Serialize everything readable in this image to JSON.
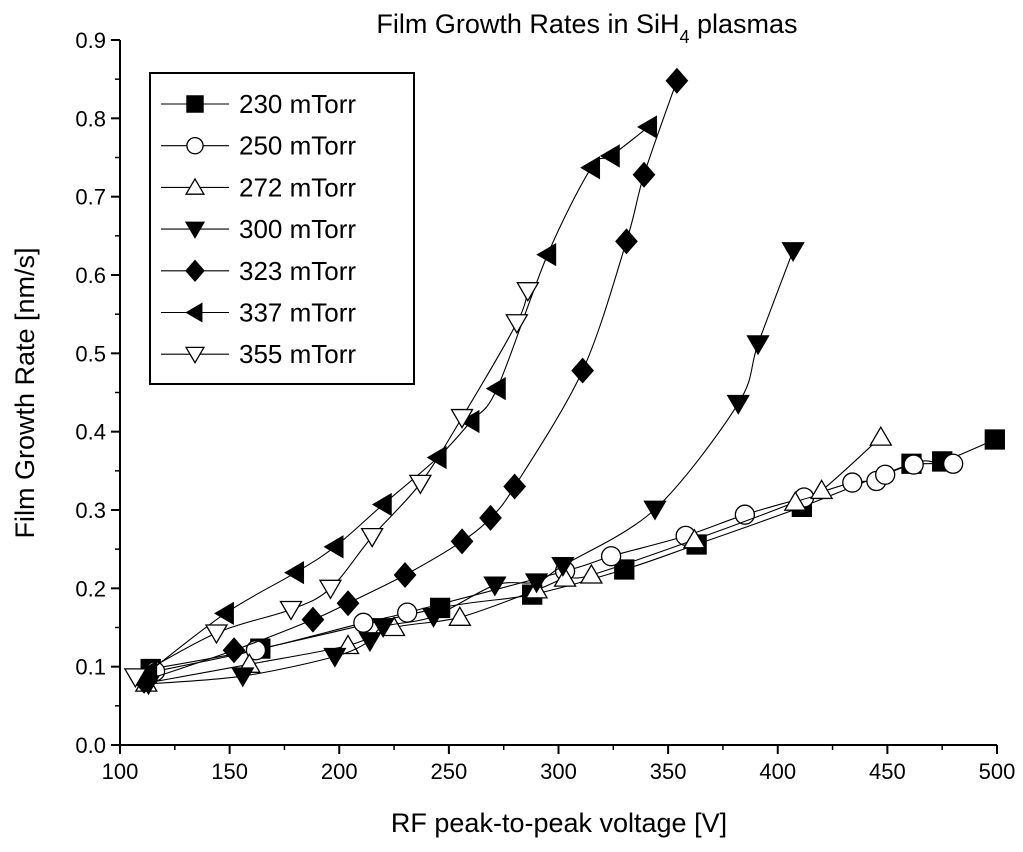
{
  "chart_data": {
    "type": "line",
    "title": {
      "main": "Film Growth Rates in SiH",
      "sub": "4",
      "suffix": " plasmas"
    },
    "xlabel": "RF peak-to-peak voltage [V]",
    "ylabel": "Film Growth Rate [nm/s]",
    "xlim": [
      100,
      500
    ],
    "ylim": [
      0.0,
      0.9
    ],
    "xticks": [
      "100",
      "150",
      "200",
      "250",
      "300",
      "350",
      "400",
      "450",
      "500"
    ],
    "yticks": [
      "0.0",
      "0.1",
      "0.2",
      "0.3",
      "0.4",
      "0.5",
      "0.6",
      "0.7",
      "0.8",
      "0.9"
    ],
    "grid": false,
    "legend_position": "top-left",
    "series": [
      {
        "name": "230 mTorr",
        "marker": "square",
        "fill": "black",
        "points": [
          [
            114,
            0.097
          ],
          [
            164,
            0.123
          ],
          [
            246,
            0.175
          ],
          [
            288,
            0.192
          ],
          [
            330,
            0.224
          ],
          [
            363,
            0.256
          ],
          [
            411,
            0.304
          ],
          [
            461,
            0.359
          ],
          [
            475,
            0.362
          ],
          [
            499,
            0.39
          ]
        ]
      },
      {
        "name": "250 mTorr",
        "marker": "circle",
        "fill": "white",
        "points": [
          [
            116,
            0.094
          ],
          [
            162,
            0.121
          ],
          [
            211,
            0.156
          ],
          [
            231,
            0.169
          ],
          [
            303,
            0.222
          ],
          [
            324,
            0.241
          ],
          [
            358,
            0.267
          ],
          [
            385,
            0.294
          ],
          [
            412,
            0.316
          ],
          [
            434,
            0.335
          ],
          [
            445,
            0.337
          ],
          [
            449,
            0.345
          ],
          [
            462,
            0.358
          ],
          [
            480,
            0.359
          ]
        ]
      },
      {
        "name": "272 mTorr",
        "marker": "triangle-up",
        "fill": "white",
        "points": [
          [
            112,
            0.079
          ],
          [
            159,
            0.103
          ],
          [
            204,
            0.127
          ],
          [
            225,
            0.15
          ],
          [
            255,
            0.163
          ],
          [
            290,
            0.198
          ],
          [
            303,
            0.213
          ],
          [
            315,
            0.217
          ],
          [
            362,
            0.262
          ],
          [
            408,
            0.31
          ],
          [
            420,
            0.325
          ],
          [
            447,
            0.393
          ]
        ]
      },
      {
        "name": "300 mTorr",
        "marker": "triangle-down",
        "fill": "black",
        "points": [
          [
            113,
            0.078
          ],
          [
            156,
            0.088
          ],
          [
            198,
            0.113
          ],
          [
            214,
            0.133
          ],
          [
            220,
            0.151
          ],
          [
            243,
            0.164
          ],
          [
            271,
            0.204
          ],
          [
            290,
            0.208
          ],
          [
            302,
            0.229
          ],
          [
            344,
            0.301
          ],
          [
            382,
            0.436
          ],
          [
            391,
            0.512
          ],
          [
            407,
            0.631
          ]
        ]
      },
      {
        "name": "323 mTorr",
        "marker": "diamond",
        "fill": "black",
        "points": [
          [
            111,
            0.082
          ],
          [
            152,
            0.121
          ],
          [
            188,
            0.16
          ],
          [
            204,
            0.181
          ],
          [
            230,
            0.217
          ],
          [
            256,
            0.26
          ],
          [
            269,
            0.29
          ],
          [
            280,
            0.33
          ],
          [
            311,
            0.478
          ],
          [
            331,
            0.643
          ],
          [
            339,
            0.728
          ],
          [
            354,
            0.848
          ]
        ]
      },
      {
        "name": "337 mTorr",
        "marker": "triangle-left",
        "fill": "black",
        "points": [
          [
            113,
            0.093
          ],
          [
            148,
            0.168
          ],
          [
            180,
            0.22
          ],
          [
            198,
            0.253
          ],
          [
            220,
            0.307
          ],
          [
            245,
            0.367
          ],
          [
            260,
            0.413
          ],
          [
            272,
            0.455
          ],
          [
            295,
            0.626
          ],
          [
            315,
            0.737
          ],
          [
            324,
            0.752
          ],
          [
            341,
            0.789
          ]
        ]
      },
      {
        "name": "355 mTorr",
        "marker": "triangle-down",
        "fill": "white",
        "points": [
          [
            107,
            0.087
          ],
          [
            144,
            0.143
          ],
          [
            178,
            0.173
          ],
          [
            196,
            0.2
          ],
          [
            215,
            0.266
          ],
          [
            237,
            0.334
          ],
          [
            256,
            0.418
          ],
          [
            281,
            0.539
          ],
          [
            286,
            0.58
          ]
        ]
      }
    ]
  }
}
